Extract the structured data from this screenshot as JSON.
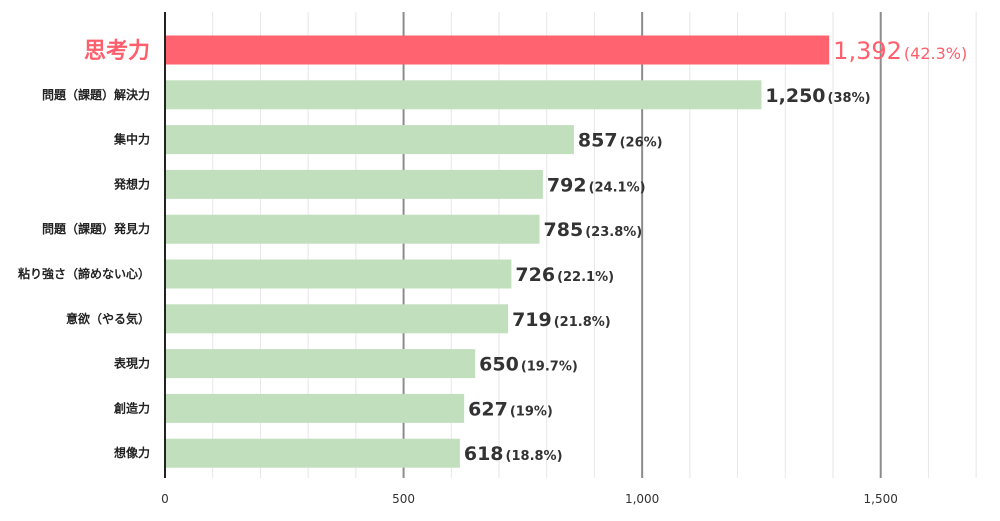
{
  "chart_data": {
    "type": "bar",
    "orientation": "horizontal",
    "categories": [
      "思考力",
      "問題（課題）解決力",
      "集中力",
      "発想力",
      "問題（課題）発見力",
      "粘り強さ（諦めない心）",
      "意欲（やる気）",
      "表現力",
      "創造力",
      "想像力"
    ],
    "values": [
      1392,
      1250,
      857,
      792,
      785,
      726,
      719,
      650,
      627,
      618
    ],
    "value_labels": [
      "1,392",
      "1,250",
      "857",
      "792",
      "785",
      "726",
      "719",
      "650",
      "627",
      "618"
    ],
    "percent_labels": [
      "(42.3%)",
      "(38%)",
      "(26%)",
      "(24.1%)",
      "(23.8%)",
      "(22.1%)",
      "(21.8%)",
      "(19.7%)",
      "(19%)",
      "(18.8%)"
    ],
    "highlight_index": 0,
    "xlim": [
      0,
      1750
    ],
    "x_ticks": [
      0,
      500,
      1000,
      1500
    ],
    "x_tick_labels": [
      "0",
      "500",
      "1,000",
      "1,500"
    ],
    "minor_gridline_step": 100,
    "grid": true,
    "colors": {
      "bar": "#c1dfbd",
      "highlight_bar": "#ff636f",
      "highlight_text": "#ff5f6d",
      "major_grid": "#8c8c8c",
      "minor_grid": "#e6e6e6",
      "axis": "#222222"
    }
  }
}
